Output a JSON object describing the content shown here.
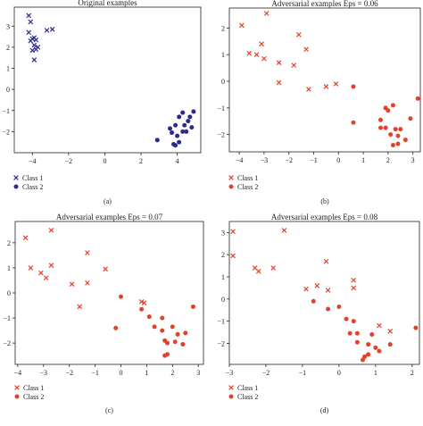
{
  "chart_data": [
    {
      "type": "scatter",
      "title": "Original examples",
      "caption": "(a)",
      "xlim": [
        -5,
        5.3
      ],
      "ylim": [
        -3,
        3.9
      ],
      "xticks": [
        -4,
        -2,
        0,
        2,
        4
      ],
      "yticks": [
        -2,
        -1,
        0,
        1,
        2,
        3
      ],
      "legend": "bottom-left",
      "series": [
        {
          "name": "Class 1",
          "marker": "x",
          "color": "#2b2b8c",
          "points": [
            [
              -4.2,
              3.5
            ],
            [
              -4.1,
              3.2
            ],
            [
              -4.2,
              2.7
            ],
            [
              -4.0,
              2.4
            ],
            [
              -3.9,
              2.45
            ],
            [
              -4.1,
              2.3
            ],
            [
              -3.8,
              2.35
            ],
            [
              -3.9,
              2.1
            ],
            [
              -3.7,
              2.0
            ],
            [
              -3.8,
              1.9
            ],
            [
              -4.0,
              1.85
            ],
            [
              -3.9,
              1.4
            ],
            [
              -3.2,
              2.8
            ],
            [
              -2.9,
              2.85
            ]
          ]
        },
        {
          "name": "Class 2",
          "marker": "dot",
          "color": "#2b2b8c",
          "points": [
            [
              2.9,
              -2.4
            ],
            [
              3.7,
              -2.05
            ],
            [
              3.9,
              -1.7
            ],
            [
              4.1,
              -1.3
            ],
            [
              4.3,
              -1.1
            ],
            [
              4.6,
              -1.5
            ],
            [
              4.4,
              -1.7
            ],
            [
              4.3,
              -2.0
            ],
            [
              4.0,
              -2.2
            ],
            [
              4.1,
              -2.5
            ],
            [
              3.8,
              -2.6
            ],
            [
              3.9,
              -2.65
            ],
            [
              4.7,
              -1.3
            ],
            [
              4.8,
              -1.8
            ],
            [
              4.5,
              -2.0
            ],
            [
              4.9,
              -1.05
            ],
            [
              3.6,
              -1.85
            ]
          ]
        }
      ]
    },
    {
      "type": "scatter",
      "title": "Adversarial examples Eps = 0.06",
      "caption": "(b)",
      "xlim": [
        -4.4,
        3.3
      ],
      "ylim": [
        -2.65,
        2.75
      ],
      "xticks": [
        -4,
        -3,
        -2,
        -1,
        0,
        1,
        2,
        3
      ],
      "yticks": [
        -2,
        -1,
        0,
        1,
        2
      ],
      "legend": "bottom-left",
      "series": [
        {
          "name": "Class 1",
          "marker": "x",
          "color": "#e0422b",
          "points": [
            [
              -3.9,
              2.1
            ],
            [
              -2.9,
              2.55
            ],
            [
              -3.6,
              1.05
            ],
            [
              -3.3,
              1.0
            ],
            [
              -3.1,
              1.4
            ],
            [
              -3.0,
              0.85
            ],
            [
              -2.4,
              0.7
            ],
            [
              -2.4,
              -0.05
            ],
            [
              -1.8,
              0.6
            ],
            [
              -1.6,
              1.75
            ],
            [
              -1.3,
              1.2
            ],
            [
              -1.2,
              -0.3
            ],
            [
              -0.5,
              -0.2
            ],
            [
              -0.1,
              -0.1
            ]
          ]
        },
        {
          "name": "Class 2",
          "marker": "dot",
          "color": "#e0422b",
          "points": [
            [
              0.6,
              -0.2
            ],
            [
              0.6,
              -1.55
            ],
            [
              1.7,
              -1.45
            ],
            [
              1.9,
              -1.0
            ],
            [
              2.0,
              -1.1
            ],
            [
              2.2,
              -0.9
            ],
            [
              1.7,
              -1.75
            ],
            [
              2.1,
              -2.0
            ],
            [
              2.3,
              -1.8
            ],
            [
              2.5,
              -1.8
            ],
            [
              2.4,
              -2.05
            ],
            [
              2.2,
              -2.4
            ],
            [
              2.4,
              -2.35
            ],
            [
              2.7,
              -2.2
            ],
            [
              2.9,
              -1.4
            ],
            [
              3.2,
              -0.65
            ],
            [
              1.9,
              -1.75
            ]
          ]
        }
      ]
    },
    {
      "type": "scatter",
      "title": "Adversarial examples Eps = 0.07",
      "caption": "(c)",
      "xlim": [
        -4.1,
        3.2
      ],
      "ylim": [
        -2.85,
        2.85
      ],
      "xticks": [
        -4,
        -3,
        -2,
        -1,
        0,
        1,
        2,
        3
      ],
      "yticks": [
        -2,
        -1,
        0,
        1,
        2
      ],
      "legend": "bottom-left",
      "series": [
        {
          "name": "Class 1",
          "marker": "x",
          "color": "#e0422b",
          "points": [
            [
              -3.7,
              2.2
            ],
            [
              -3.5,
              1.0
            ],
            [
              -3.1,
              0.8
            ],
            [
              -2.7,
              2.5
            ],
            [
              -2.7,
              1.1
            ],
            [
              -2.9,
              0.6
            ],
            [
              -1.9,
              0.35
            ],
            [
              -1.3,
              1.6
            ],
            [
              -1.3,
              0.4
            ],
            [
              -1.6,
              -0.55
            ],
            [
              -0.6,
              0.95
            ],
            [
              0.8,
              -0.35
            ],
            [
              0.9,
              -0.4
            ]
          ]
        },
        {
          "name": "Class 2",
          "marker": "dot",
          "color": "#e0422b",
          "points": [
            [
              0.0,
              -0.15
            ],
            [
              -0.2,
              -1.4
            ],
            [
              0.8,
              -0.65
            ],
            [
              1.1,
              -0.95
            ],
            [
              1.3,
              -1.35
            ],
            [
              1.6,
              -1.0
            ],
            [
              1.6,
              -1.5
            ],
            [
              1.7,
              -1.9
            ],
            [
              1.8,
              -2.0
            ],
            [
              1.8,
              -2.45
            ],
            [
              2.0,
              -1.35
            ],
            [
              2.2,
              -1.65
            ],
            [
              2.4,
              -2.05
            ],
            [
              2.5,
              -1.6
            ],
            [
              2.8,
              -0.55
            ],
            [
              1.7,
              -2.5
            ],
            [
              2.1,
              -1.95
            ]
          ]
        }
      ]
    },
    {
      "type": "scatter",
      "title": "Adversarial examples Eps = 0.08",
      "caption": "(d)",
      "xlim": [
        -3.0,
        2.2
      ],
      "ylim": [
        -2.95,
        3.5
      ],
      "xticks": [
        -3,
        -2,
        -1,
        0,
        1,
        2
      ],
      "yticks": [
        -2,
        -1,
        0,
        1,
        2,
        3
      ],
      "legend": "bottom-left",
      "series": [
        {
          "name": "Class 1",
          "marker": "x",
          "color": "#e0422b",
          "points": [
            [
              -2.9,
              3.05
            ],
            [
              -2.9,
              1.95
            ],
            [
              -2.3,
              1.4
            ],
            [
              -2.2,
              1.25
            ],
            [
              -1.8,
              1.4
            ],
            [
              -1.5,
              3.1
            ],
            [
              -0.9,
              0.45
            ],
            [
              -0.6,
              0.6
            ],
            [
              -0.35,
              1.7
            ],
            [
              -0.3,
              0.4
            ],
            [
              0.4,
              0.85
            ],
            [
              0.4,
              0.5
            ],
            [
              1.1,
              -1.2
            ],
            [
              1.4,
              -1.45
            ]
          ]
        },
        {
          "name": "Class 2",
          "marker": "dot",
          "color": "#e0422b",
          "points": [
            [
              -0.7,
              -0.1
            ],
            [
              -0.3,
              -0.45
            ],
            [
              0.0,
              -0.35
            ],
            [
              0.2,
              -0.9
            ],
            [
              0.3,
              -1.55
            ],
            [
              0.4,
              -1.0
            ],
            [
              0.5,
              -1.55
            ],
            [
              0.5,
              -1.95
            ],
            [
              0.8,
              -2.05
            ],
            [
              0.8,
              -2.5
            ],
            [
              0.9,
              -1.6
            ],
            [
              1.0,
              -2.2
            ],
            [
              1.1,
              -2.35
            ],
            [
              1.4,
              -2.05
            ],
            [
              2.1,
              -1.3
            ],
            [
              0.65,
              -2.75
            ],
            [
              0.7,
              -2.6
            ]
          ]
        }
      ]
    }
  ]
}
